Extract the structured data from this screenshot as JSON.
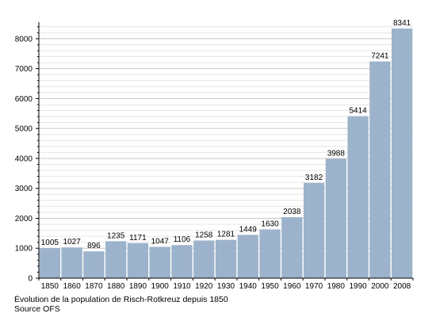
{
  "chart_data": {
    "type": "bar",
    "categories": [
      "1850",
      "1860",
      "1870",
      "1880",
      "1890",
      "1900",
      "1910",
      "1920",
      "1930",
      "1940",
      "1950",
      "1960",
      "1970",
      "1980",
      "1990",
      "2000",
      "2008"
    ],
    "values": [
      1005,
      1027,
      896,
      1235,
      1171,
      1047,
      1106,
      1258,
      1281,
      1449,
      1630,
      2038,
      3182,
      3988,
      5414,
      7241,
      8341
    ],
    "data_labels": [
      "1005",
      "1027",
      "896",
      "1235",
      "1171",
      "1047",
      "1106",
      "1258",
      "1281",
      "1449",
      "1630",
      "2038",
      "3182",
      "3988",
      "5414",
      "7241",
      "8341"
    ],
    "ylim": [
      0,
      8500
    ],
    "yticks": [
      0,
      1000,
      2000,
      3000,
      4000,
      5000,
      6000,
      7000,
      8000
    ],
    "ytick_labels": [
      "0",
      "1000",
      "2000",
      "3000",
      "4000",
      "5000",
      "6000",
      "7000",
      "8000"
    ],
    "grid": true,
    "bar_color": "#9db3cc"
  },
  "caption": {
    "title": "Évolution de la population de Risch-Rotkreuz depuis 1850",
    "source": "Source OFS"
  }
}
